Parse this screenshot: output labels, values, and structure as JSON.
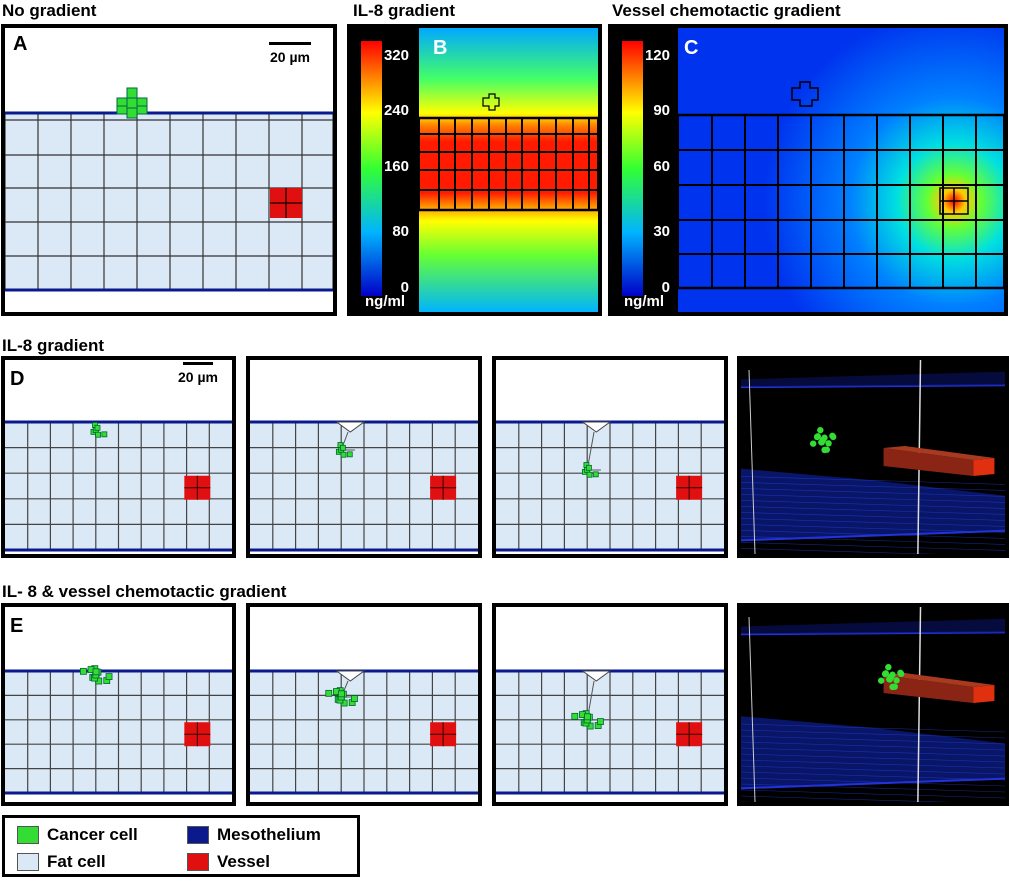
{
  "titles": {
    "no_gradient": "No gradient",
    "il8_gradient": "IL-8 gradient",
    "vessel_gradient": "Vessel chemotactic gradient",
    "row_d": "IL-8 gradient",
    "row_e": "IL- 8 & vessel chemotactic gradient"
  },
  "panel_labels": {
    "a": "A",
    "b": "B",
    "c": "C",
    "d": "D",
    "e": "E"
  },
  "scale_bar": "20 µm",
  "colorbar_b": {
    "ticks": [
      "320",
      "240",
      "160",
      "80",
      "0"
    ],
    "unit": "ng/ml"
  },
  "colorbar_c": {
    "ticks": [
      "120",
      "90",
      "60",
      "30",
      "0"
    ],
    "unit": "ng/ml"
  },
  "legend": {
    "cancer_cell": "Cancer cell",
    "fat_cell": "Fat cell",
    "mesothelium": "Mesothelium",
    "vessel": "Vessel"
  },
  "colors": {
    "cancer": "#33dd33",
    "fat": "#dbe9f6",
    "mesothelium": "#0a1a8c",
    "vessel": "#e01010",
    "vessel_3d": "#8a2515"
  }
}
